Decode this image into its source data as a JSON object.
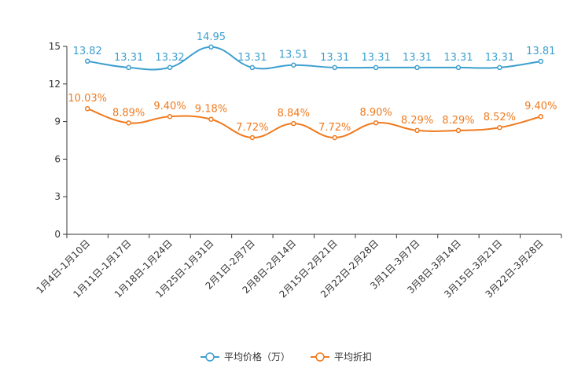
{
  "chart_data": {
    "type": "line",
    "title": "",
    "xlabel": "",
    "ylabel": "",
    "ylim": [
      0,
      15
    ],
    "yticks": [
      0,
      3,
      6,
      9,
      12,
      15
    ],
    "categories": [
      "1月4日-1月10日",
      "1月11日-1月17日",
      "1月18日-1月24日",
      "1月25日-1月31日",
      "2月1日-2月7日",
      "2月8日-2月14日",
      "2月15日-2月21日",
      "2月22日-2月28日",
      "3月1日-3月7日",
      "3月8日-3月14日",
      "3月15日-3月21日",
      "3月22日-3月28日"
    ],
    "series": [
      {
        "name": "平均价格（万）",
        "color": "#3d9fcf",
        "values": [
          13.82,
          13.31,
          13.32,
          14.95,
          13.31,
          13.51,
          13.31,
          13.31,
          13.31,
          13.31,
          13.31,
          13.81
        ],
        "labels": [
          "13.82",
          "13.31",
          "13.32",
          "14.95",
          "13.31",
          "13.51",
          "13.31",
          "13.31",
          "13.31",
          "13.31",
          "13.31",
          "13.81"
        ]
      },
      {
        "name": "平均折扣",
        "color": "#f07a1e",
        "values": [
          10.03,
          8.89,
          9.4,
          9.18,
          7.72,
          8.84,
          7.72,
          8.9,
          8.29,
          8.29,
          8.52,
          9.4
        ],
        "labels": [
          "10.03%",
          "8.89%",
          "9.40%",
          "9.18%",
          "7.72%",
          "8.84%",
          "7.72%",
          "8.90%",
          "8.29%",
          "8.29%",
          "8.52%",
          "9.40%"
        ]
      }
    ],
    "legend_position": "bottom-center",
    "grid": false
  }
}
